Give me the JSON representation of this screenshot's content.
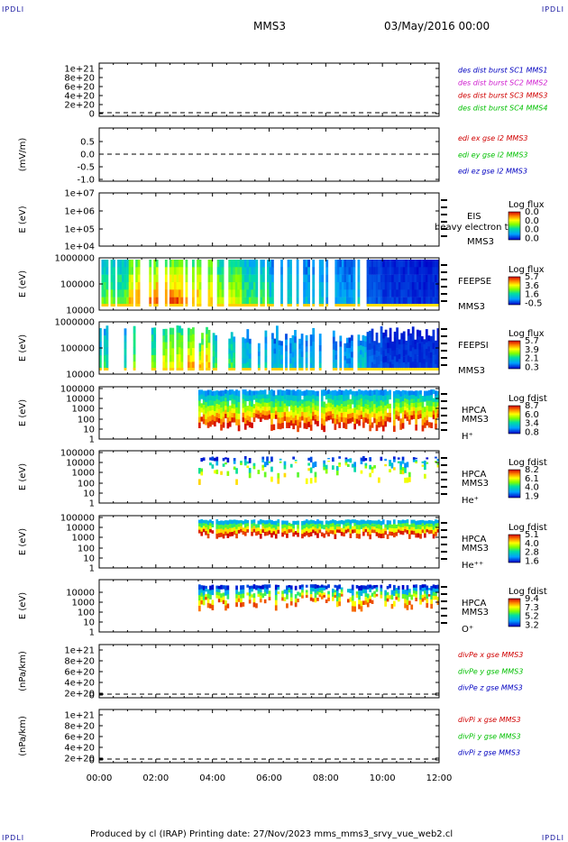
{
  "header": {
    "spacecraft": "MMS3",
    "datetime": "03/May/2016 00:00"
  },
  "corner_label": "IPDLI",
  "footer": {
    "text": "Produced by cl (IRAP)   Printing date: 27/Nov/2023   mms_mms3_srvy_vue_web2.cl"
  },
  "x_ticks": [
    "00:00",
    "02:00",
    "04:00",
    "06:00",
    "08:00",
    "10:00",
    "12:00"
  ],
  "panels": [
    {
      "id": "dist",
      "ylabel": "",
      "ticks": [
        "1e+21",
        "8e+20",
        "6e+20",
        "4e+20",
        "2e+20",
        "0"
      ],
      "legend": [
        {
          "text": "des dist burst SC1 MMS1",
          "color": "#0000c0"
        },
        {
          "text": "des dist burst SC2 MMS2",
          "color": "#d020d0"
        },
        {
          "text": "des dist burst SC3 MMS3",
          "color": "#d00000"
        },
        {
          "text": "des dist burst SC4 MMS4",
          "color": "#00c000"
        }
      ]
    },
    {
      "id": "edi",
      "ylabel": "(mV/m)",
      "ticks": [
        "0.5",
        "0.0",
        "-0.5",
        "-1.0"
      ],
      "legend": [
        {
          "text": "edi ex gse l2 MMS3",
          "color": "#d00000"
        },
        {
          "text": "edi ey gse l2 MMS3",
          "color": "#00c000"
        },
        {
          "text": "edi ez gse l2 MMS3",
          "color": "#0000c0"
        }
      ]
    },
    {
      "id": "eis",
      "ylabel": "E (eV)",
      "ticks": [
        "1e+07",
        "1e+06",
        "1e+05",
        "1e+04"
      ],
      "side": [
        "EIS",
        "MMS3"
      ],
      "overlay": "heavy electron to",
      "cb_title": "Log flux",
      "cb_values": [
        "0.0",
        "0.0",
        "0.0",
        "0.0"
      ]
    },
    {
      "id": "feepse",
      "ylabel": "E (eV)",
      "ticks": [
        "1000000",
        "100000",
        "10000"
      ],
      "side": [
        "FEEPSE",
        "MMS3"
      ],
      "cb_title": "Log flux",
      "cb_values": [
        "5.7",
        "3.6",
        "1.6",
        "-0.5"
      ]
    },
    {
      "id": "feepsi",
      "ylabel": "E (eV)",
      "ticks": [
        "1000000",
        "100000",
        "10000"
      ],
      "side": [
        "FEEPSI",
        "MMS3"
      ],
      "cb_title": "Log flux",
      "cb_values": [
        "5.7",
        "3.9",
        "2.1",
        "0.3"
      ]
    },
    {
      "id": "hpca_h",
      "ylabel": "E (eV)",
      "ticks": [
        "100000",
        "10000",
        "1000",
        "100",
        "10",
        "1"
      ],
      "side": [
        "HPCA",
        "MMS3",
        "H⁺"
      ],
      "cb_title": "Log fdist",
      "cb_values": [
        "8.7",
        "6.0",
        "3.4",
        "0.8"
      ]
    },
    {
      "id": "hpca_he",
      "ylabel": "E (eV)",
      "ticks": [
        "100000",
        "10000",
        "1000",
        "100",
        "10",
        "1"
      ],
      "side": [
        "HPCA",
        "MMS3",
        "He⁺"
      ],
      "cb_title": "Log fdist",
      "cb_values": [
        "8.2",
        "6.1",
        "4.0",
        "1.9"
      ]
    },
    {
      "id": "hpca_hepp",
      "ylabel": "E (eV)",
      "ticks": [
        "100000",
        "10000",
        "1000",
        "100",
        "10",
        "1"
      ],
      "side": [
        "HPCA",
        "MMS3",
        "He⁺⁺"
      ],
      "cb_title": "Log fdist",
      "cb_values": [
        "5.1",
        "4.0",
        "2.8",
        "1.6"
      ]
    },
    {
      "id": "hpca_o",
      "ylabel": "E (eV)",
      "ticks": [
        "10000",
        "1000",
        "100",
        "10",
        "1"
      ],
      "side": [
        "HPCA",
        "MMS3",
        "O⁺"
      ],
      "cb_title": "Log fdist",
      "cb_values": [
        "9.4",
        "7.3",
        "5.2",
        "3.2"
      ]
    },
    {
      "id": "divpe",
      "ylabel": "(nPa/km)",
      "ticks": [
        "1e+21",
        "8e+20",
        "6e+20",
        "4e+20",
        "2e+20",
        "0"
      ],
      "legend": [
        {
          "text": "divPe x gse MMS3",
          "color": "#d00000"
        },
        {
          "text": "divPe y gse MMS3",
          "color": "#00c000"
        },
        {
          "text": "divPe z gse MMS3",
          "color": "#0000c0"
        }
      ]
    },
    {
      "id": "divpi",
      "ylabel": "(nPa/km)",
      "ticks": [
        "1e+21",
        "8e+20",
        "6e+20",
        "4e+20",
        "2e+20",
        "0"
      ],
      "legend": [
        {
          "text": "divPi x gse MMS3",
          "color": "#d00000"
        },
        {
          "text": "divPi y gse MMS3",
          "color": "#00c000"
        },
        {
          "text": "divPi z gse MMS3",
          "color": "#0000c0"
        }
      ]
    }
  ],
  "chart_data": {
    "type": "heatmap",
    "x_range_hours": [
      0,
      12
    ],
    "spectrograms": [
      {
        "panel": "feepse",
        "data_start_hour": 0.0,
        "data_end_hour": 12.0,
        "note_levels": "log flux, 0 = min, 1 = max",
        "profile": [
          0.55,
          0.9,
          0.95,
          0.85,
          0.7,
          0.5,
          0.35,
          0.3,
          0.25,
          0.3,
          0.2,
          0.15
        ]
      },
      {
        "panel": "feepsi",
        "data_start_hour": 0.0,
        "data_end_hour": 12.0,
        "profile": [
          0.45,
          0.6,
          0.75,
          0.85,
          0.5,
          0.35,
          0.3,
          0.3,
          0.25,
          0.35,
          0.2,
          0.2
        ]
      },
      {
        "panel": "hpca_h",
        "data_start_hour": 3.5,
        "data_end_hour": 12.0
      },
      {
        "panel": "hpca_he",
        "data_start_hour": 3.5,
        "data_end_hour": 12.0
      },
      {
        "panel": "hpca_hepp",
        "data_start_hour": 3.5,
        "data_end_hour": 12.0
      },
      {
        "panel": "hpca_o",
        "data_start_hour": 3.5,
        "data_end_hour": 12.0
      }
    ]
  },
  "colors": {
    "line_red": "#d00000",
    "line_green": "#00c000",
    "line_blue": "#0000c0"
  }
}
